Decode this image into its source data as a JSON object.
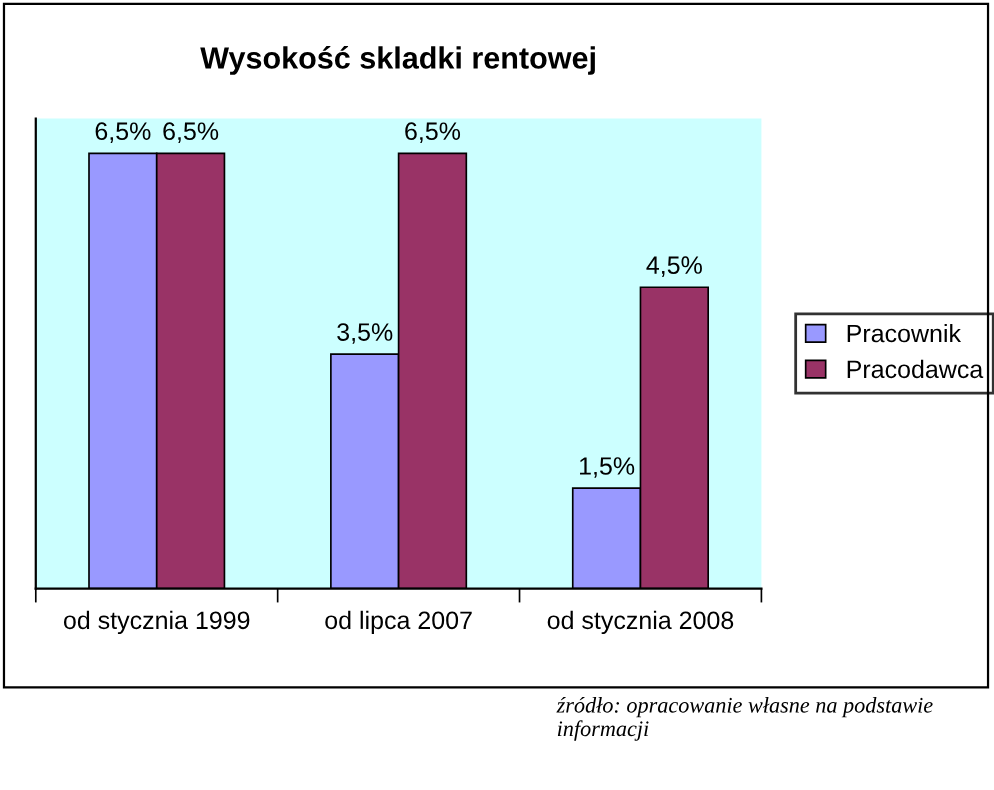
{
  "chart_data": {
    "type": "bar",
    "title": "Wysokość skladki rentowej",
    "categories": [
      "od stycznia 1999",
      "od lipca 2007",
      "od stycznia 2008"
    ],
    "series": [
      {
        "name": "Pracownik",
        "color": "#9999ff",
        "values": [
          6.5,
          3.5,
          1.5
        ],
        "value_labels": [
          "6,5%",
          "3,5%",
          "1,5%"
        ]
      },
      {
        "name": "Pracodawca",
        "color": "#993366",
        "values": [
          6.5,
          6.5,
          4.5
        ],
        "value_labels": [
          "6,5%",
          "6,5%",
          "4,5%"
        ]
      }
    ],
    "legend": "right",
    "grid": false,
    "annotations": [
      "źródło: opracowanie własne na podstawie informacji"
    ]
  }
}
